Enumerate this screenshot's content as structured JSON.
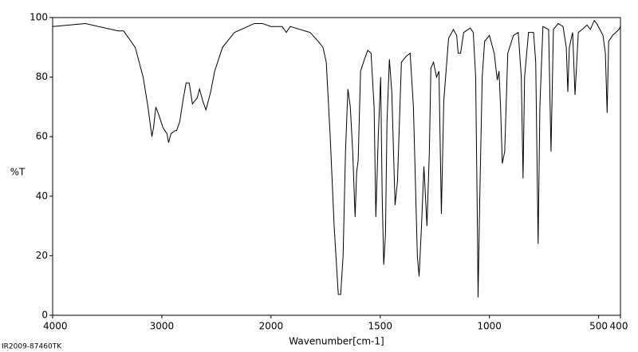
{
  "chart_data": {
    "type": "line",
    "xlabel": "Wavenumber[cm-1]",
    "ylabel": "%T",
    "footer": "IR2009-87460TK",
    "xlim": [
      4000,
      400
    ],
    "xticks": [
      4000,
      3000,
      2000,
      1500,
      1000,
      500,
      400
    ],
    "xscale_break": 2000,
    "ylim": [
      0,
      100
    ],
    "yticks": [
      0,
      20,
      40,
      60,
      80,
      100
    ],
    "color": "#000000",
    "x": [
      4000,
      3700,
      3400,
      3350,
      3244,
      3171,
      3127,
      3091,
      3076,
      3055,
      3025,
      2989,
      2953,
      2938,
      2916,
      2880,
      2865,
      2836,
      2807,
      2778,
      2749,
      2720,
      2676,
      2655,
      2625,
      2596,
      2553,
      2516,
      2444,
      2335,
      2153,
      2080,
      2000,
      1949,
      1930,
      1912,
      1821,
      1784,
      1762,
      1747,
      1729,
      1711,
      1692,
      1681,
      1670,
      1659,
      1648,
      1637,
      1626,
      1615,
      1608,
      1601,
      1590,
      1572,
      1557,
      1542,
      1528,
      1520,
      1509,
      1498,
      1491,
      1484,
      1476,
      1469,
      1458,
      1447,
      1432,
      1421,
      1403,
      1381,
      1363,
      1348,
      1330,
      1322,
      1311,
      1300,
      1293,
      1286,
      1275,
      1268,
      1256,
      1242,
      1231,
      1220,
      1209,
      1187,
      1165,
      1150,
      1143,
      1132,
      1118,
      1088,
      1074,
      1063,
      1055,
      1052,
      1044,
      1033,
      1022,
      1000,
      978,
      964,
      956,
      949,
      941,
      930,
      916,
      890,
      868,
      854,
      846,
      839,
      821,
      798,
      788,
      777,
      769,
      755,
      729,
      718,
      707,
      685,
      663,
      648,
      641,
      634,
      619,
      608,
      593,
      575,
      553,
      538,
      520,
      509,
      494,
      480,
      469,
      461,
      454,
      436,
      421,
      407,
      400
    ],
    "values": [
      97,
      98,
      95.5,
      95.5,
      90,
      80,
      70,
      60,
      63,
      70,
      67,
      63,
      61,
      58,
      61,
      62,
      62,
      65,
      72,
      78,
      78,
      71,
      73,
      76,
      72,
      69,
      75,
      82,
      90,
      95,
      98,
      98,
      97,
      97,
      95,
      97,
      95,
      92,
      90,
      85,
      60,
      30,
      7,
      7,
      20,
      55,
      76,
      70,
      55,
      33,
      48,
      52,
      82,
      86,
      89,
      88,
      70,
      33,
      60,
      80,
      40,
      17,
      27,
      65,
      86,
      75,
      37,
      45,
      85,
      87,
      88,
      70,
      20,
      13,
      30,
      50,
      40,
      30,
      55,
      83,
      85,
      80,
      82,
      34,
      72,
      93,
      96,
      94,
      88,
      88,
      95,
      96.5,
      95,
      80,
      30,
      6,
      40,
      80,
      92,
      94,
      88,
      79,
      82,
      70,
      51,
      55,
      88,
      94,
      95,
      80,
      46,
      80,
      95,
      95,
      85,
      24,
      70,
      97,
      96,
      55,
      96,
      98,
      97,
      90,
      75,
      90,
      95,
      74,
      95,
      96,
      97.5,
      96,
      99,
      98,
      96,
      94,
      88,
      68,
      92,
      94,
      95,
      96,
      97
    ]
  }
}
